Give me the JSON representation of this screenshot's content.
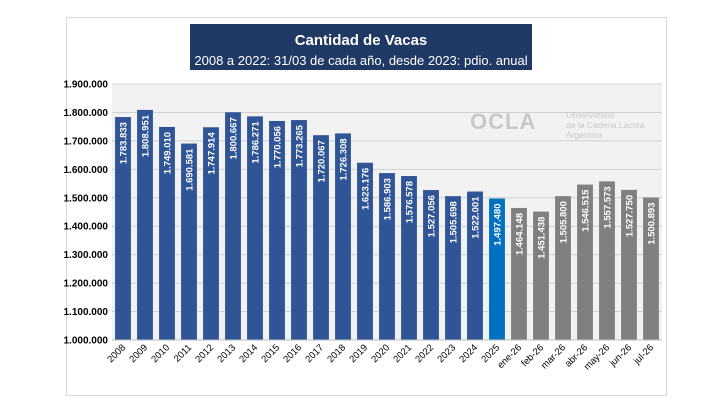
{
  "chart_data": {
    "type": "bar",
    "title": "Cantidad de Vacas",
    "subtitle": "2008 a 2022: 31/03 de cada año, desde 2023: pdio. anual",
    "categories": [
      "2008",
      "2009",
      "2010",
      "2011",
      "2012",
      "2013",
      "2014",
      "2015",
      "2016",
      "2017",
      "2018",
      "2019",
      "2020",
      "2021",
      "2022",
      "2023",
      "2024",
      "2025",
      "ene-26",
      "feb-26",
      "mar-26",
      "abr-26",
      "may-26",
      "jun-26",
      "jul-26"
    ],
    "values": [
      1783833,
      1808951,
      1749010,
      1690581,
      1747914,
      1800667,
      1786271,
      1770056,
      1773265,
      1720067,
      1726308,
      1623176,
      1586903,
      1576578,
      1527056,
      1505698,
      1522001,
      1497480,
      1464148,
      1451438,
      1505800,
      1546515,
      1557573,
      1527750,
      1500893
    ],
    "data_labels": [
      "1.783.833",
      "1.808.951",
      "1.749.010",
      "1.690.581",
      "1.747.914",
      "1.800.667",
      "1.786.271",
      "1.770.056",
      "1.773.265",
      "1.720.067",
      "1.726.308",
      "1.623.176",
      "1.586.903",
      "1.576.578",
      "1.527.056",
      "1.505.698",
      "1.522.001",
      "1.497.480",
      "1.464.148",
      "1.451.438",
      "1.505.800",
      "1.546.515",
      "1.557.573",
      "1.527.750",
      "1.500.893"
    ],
    "bar_colors": [
      "#2f5597",
      "#2f5597",
      "#2f5597",
      "#2f5597",
      "#2f5597",
      "#2f5597",
      "#2f5597",
      "#2f5597",
      "#2f5597",
      "#2f5597",
      "#2f5597",
      "#2f5597",
      "#2f5597",
      "#2f5597",
      "#2f5597",
      "#2f5597",
      "#2f5597",
      "#0070c0",
      "#808080",
      "#808080",
      "#808080",
      "#808080",
      "#808080",
      "#808080",
      "#808080"
    ],
    "y_ticks": [
      1000000,
      1100000,
      1200000,
      1300000,
      1400000,
      1500000,
      1600000,
      1700000,
      1800000,
      1900000
    ],
    "y_tick_labels": [
      "1.000.000",
      "1.100.000",
      "1.200.000",
      "1.300.000",
      "1.400.000",
      "1.500.000",
      "1.600.000",
      "1.700.000",
      "1.800.000",
      "1.900.000"
    ],
    "ylim": [
      1000000,
      1900000
    ],
    "grid": true,
    "legend": "none"
  },
  "watermark": {
    "mark": "OCLA",
    "lines": [
      "Observatorio",
      "de la Cadena Láctea",
      "Argentina"
    ]
  },
  "colors": {
    "title_bg": "#1f3864",
    "plot_bg": "#f2f2f2",
    "historic_bar": "#2f5597",
    "current_bar": "#0070c0",
    "monthly_bar": "#808080"
  }
}
